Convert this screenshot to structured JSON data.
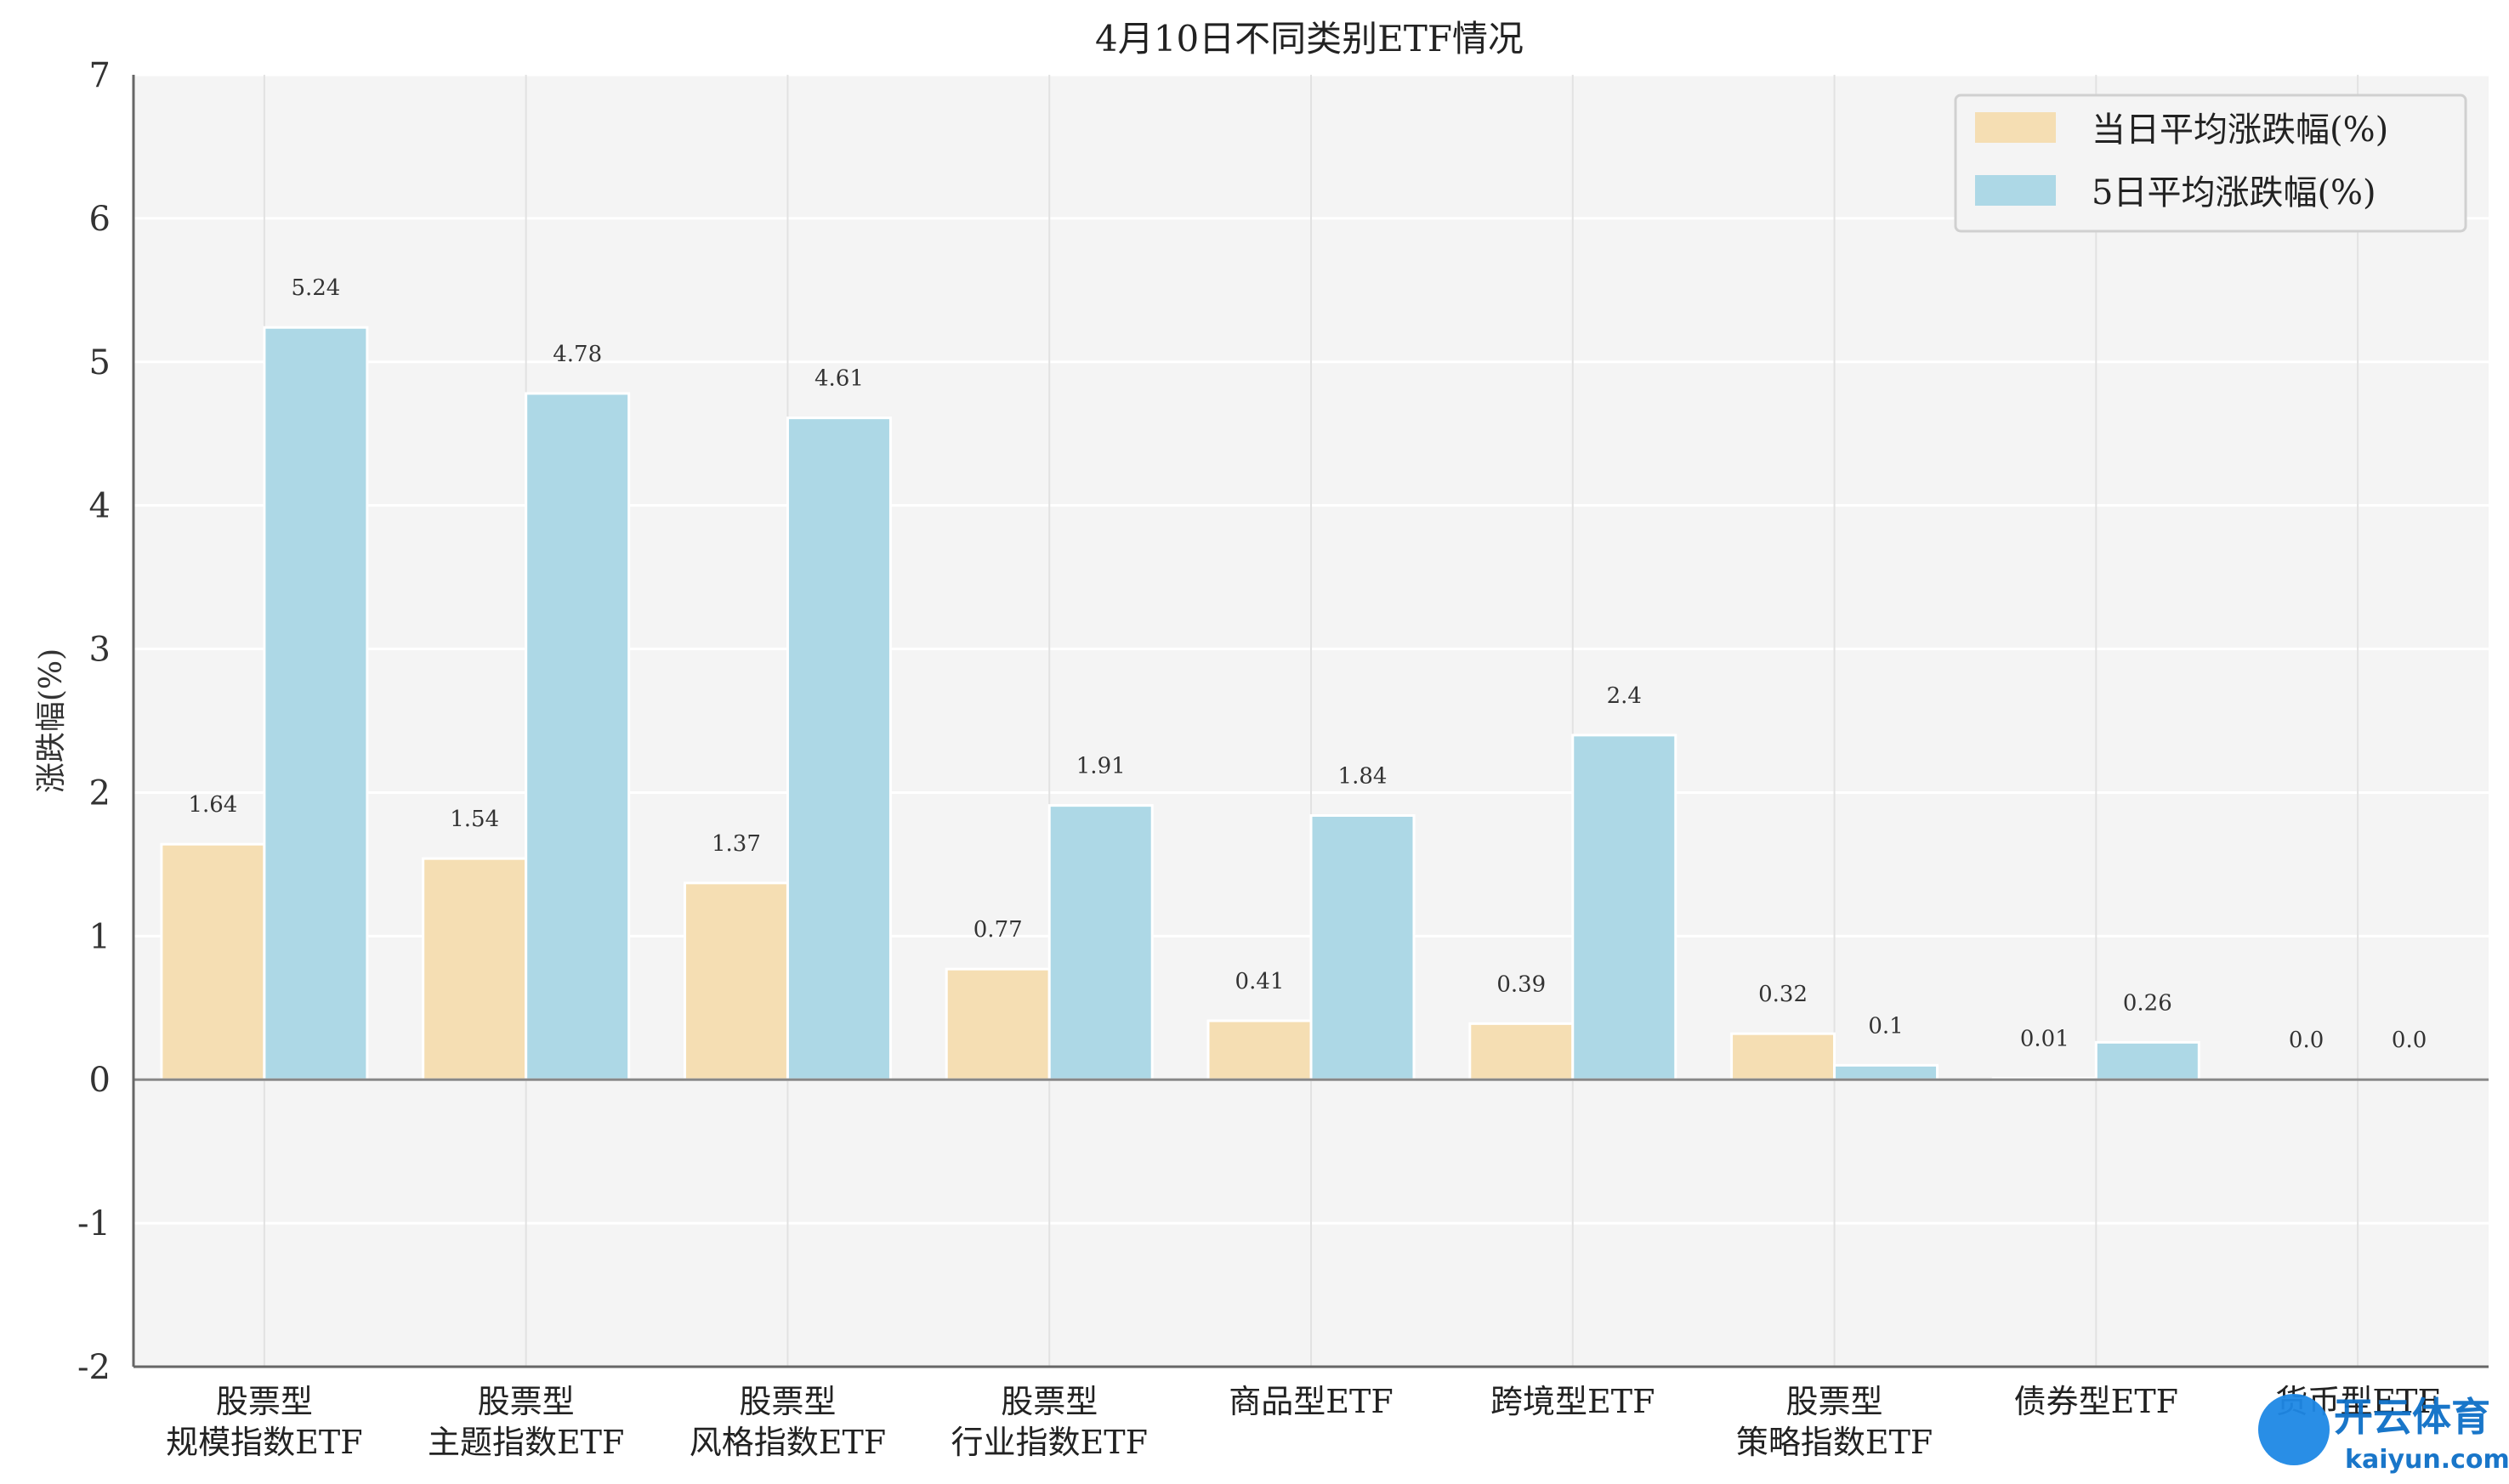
{
  "chart_data": {
    "type": "bar",
    "title": "4月10日不同类别ETF情况",
    "ylabel": "涨跌幅(%)",
    "xlabel": "",
    "ylim": [
      -2,
      7
    ],
    "yticks": [
      "7",
      "6",
      "5",
      "4",
      "3",
      "2",
      "1",
      "0",
      "-1",
      "-2"
    ],
    "grid": true,
    "legend_position": "top-right",
    "categories": [
      [
        "股票型",
        "规模指数ETF"
      ],
      [
        "股票型",
        "主题指数ETF"
      ],
      [
        "股票型",
        "风格指数ETF"
      ],
      [
        "股票型",
        "行业指数ETF"
      ],
      [
        "商品型ETF"
      ],
      [
        "跨境型ETF"
      ],
      [
        "股票型",
        "策略指数ETF"
      ],
      [
        "债券型ETF"
      ],
      [
        "货币型ETF"
      ]
    ],
    "series": [
      {
        "name": "当日平均涨跌幅(%)",
        "color": "#f5deb3",
        "values": [
          1.64,
          1.54,
          1.37,
          0.77,
          0.41,
          0.39,
          0.32,
          0.01,
          0.0
        ],
        "labels": [
          "1.64",
          "1.54",
          "1.37",
          "0.77",
          "0.41",
          "0.39",
          "0.32",
          "0.01",
          "0.0"
        ]
      },
      {
        "name": "5日平均涨跌幅(%)",
        "color": "#add8e6",
        "values": [
          5.24,
          4.78,
          4.61,
          1.91,
          1.84,
          2.4,
          0.1,
          0.26,
          0.0
        ],
        "labels": [
          "5.24",
          "4.78",
          "4.61",
          "1.91",
          "1.84",
          "2.4",
          "0.1",
          "0.26",
          "0.0"
        ]
      }
    ]
  },
  "watermark": {
    "brand": "开云体育",
    "domain": "kaiyun.com"
  }
}
